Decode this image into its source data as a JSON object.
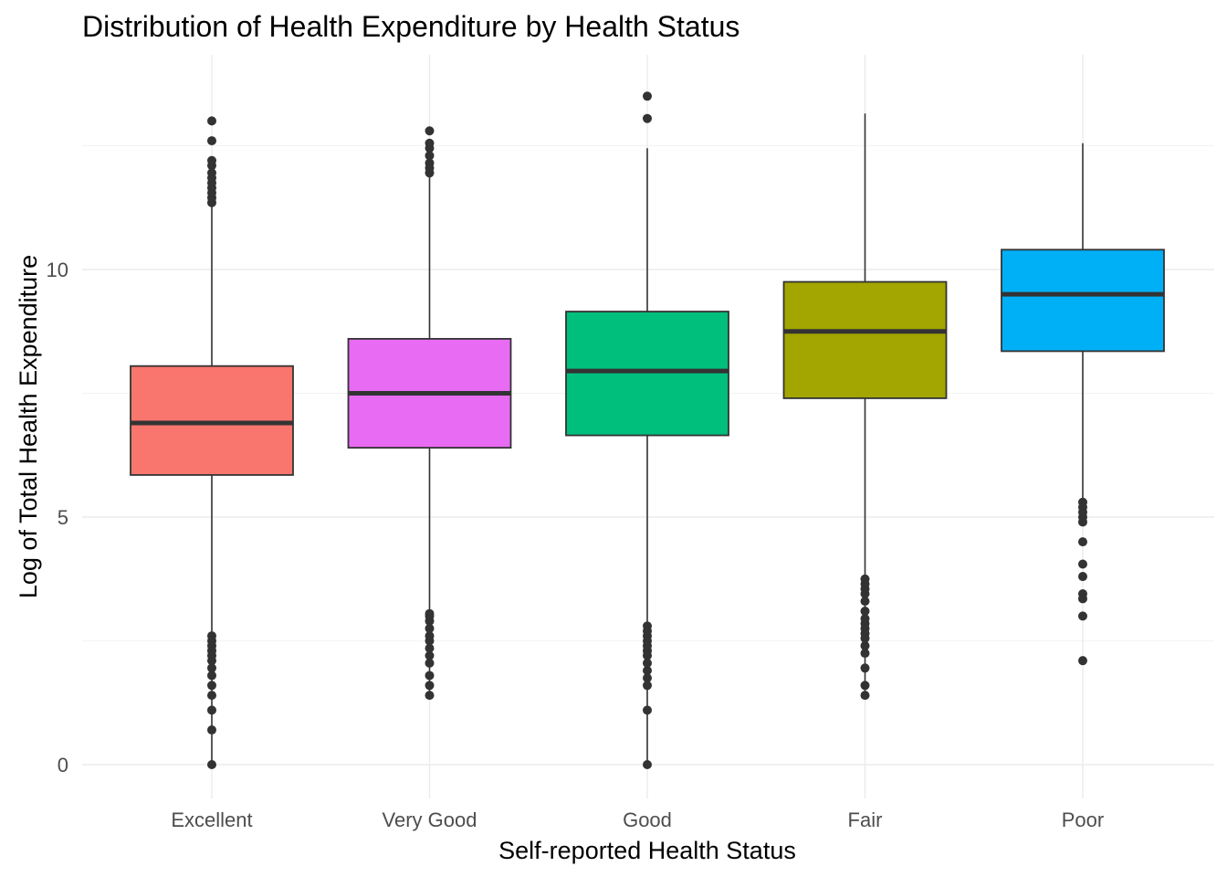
{
  "chart_data": {
    "type": "boxplot",
    "title": "Distribution of Health Expenditure by Health Status",
    "xlabel": "Self-reported Health Status",
    "ylabel": "Log of Total Health Expenditure",
    "ylim": [
      -0.6,
      14.3
    ],
    "y_ticks": [
      0,
      5,
      10
    ],
    "y_tick_labels": [
      "0",
      "5",
      "10"
    ],
    "grid": true,
    "legend": "none",
    "categories": [
      "Excellent",
      "Very Good",
      "Good",
      "Fair",
      "Poor"
    ],
    "series": [
      {
        "color": "#F8766D",
        "whisker_low": 0.0,
        "q1": 5.85,
        "median": 6.9,
        "q3": 8.05,
        "whisker_high": 11.3,
        "outliers": [
          0.0,
          0.7,
          1.1,
          1.4,
          1.6,
          1.8,
          1.95,
          2.1,
          2.2,
          2.3,
          2.4,
          2.5,
          2.6,
          11.35,
          11.45,
          11.55,
          11.65,
          11.75,
          11.85,
          11.95,
          12.1,
          12.2,
          12.6,
          13.0
        ]
      },
      {
        "color": "#E76BF3",
        "whisker_low": 1.4,
        "q1": 6.4,
        "median": 7.5,
        "q3": 8.6,
        "whisker_high": 11.9,
        "outliers": [
          1.4,
          1.6,
          1.8,
          2.05,
          2.2,
          2.35,
          2.5,
          2.6,
          2.75,
          2.9,
          3.0,
          3.05,
          11.95,
          12.05,
          12.15,
          12.3,
          12.45,
          12.55,
          12.8
        ]
      },
      {
        "color": "#00BF7D",
        "whisker_low": 0.0,
        "q1": 6.65,
        "median": 7.95,
        "q3": 9.15,
        "whisker_high": 12.45,
        "outliers": [
          0.0,
          1.1,
          1.6,
          1.75,
          1.9,
          2.05,
          2.2,
          2.3,
          2.4,
          2.5,
          2.6,
          2.7,
          2.8,
          13.05,
          13.5
        ]
      },
      {
        "color": "#A3A500",
        "whisker_low": 1.4,
        "q1": 7.4,
        "median": 8.75,
        "q3": 9.75,
        "whisker_high": 13.15,
        "outliers": [
          1.4,
          1.6,
          1.95,
          2.25,
          2.4,
          2.55,
          2.65,
          2.75,
          2.85,
          2.95,
          3.1,
          3.3,
          3.45,
          3.55,
          3.65,
          3.75
        ]
      },
      {
        "color": "#00B0F6",
        "whisker_low": 5.3,
        "q1": 8.35,
        "median": 9.5,
        "q3": 10.4,
        "whisker_high": 12.55,
        "outliers": [
          2.1,
          3.0,
          3.35,
          3.45,
          3.8,
          4.05,
          4.5,
          4.9,
          5.0,
          5.1,
          5.2,
          5.3
        ]
      }
    ]
  }
}
